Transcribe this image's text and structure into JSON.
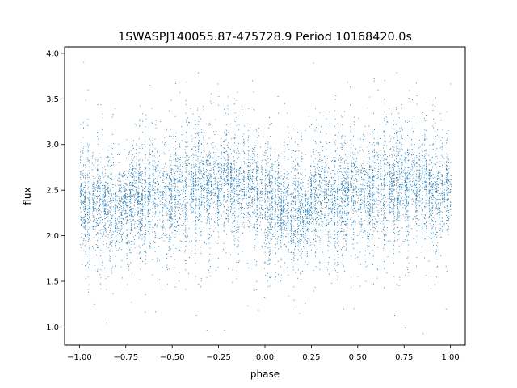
{
  "chart_data": {
    "type": "scatter",
    "title": "1SWASPJ140055.87-475728.9 Period 10168420.0s",
    "xlabel": "phase",
    "ylabel": "flux",
    "xlim": [
      -1.08,
      1.08
    ],
    "ylim": [
      0.8,
      4.07
    ],
    "xticks": [
      -1.0,
      -0.75,
      -0.5,
      -0.25,
      0.0,
      0.25,
      0.5,
      0.75,
      1.0
    ],
    "xtick_labels": [
      "−1.00",
      "−0.75",
      "−0.50",
      "−0.25",
      "0.00",
      "0.25",
      "0.50",
      "0.75",
      "1.00"
    ],
    "yticks": [
      1.0,
      1.5,
      2.0,
      2.5,
      3.0,
      3.5,
      4.0
    ],
    "ytick_labels": [
      "1.0",
      "1.5",
      "2.0",
      "2.5",
      "3.0",
      "3.5",
      "4.0"
    ],
    "grid": false,
    "marker_color": "#1f77b4",
    "series": [
      {
        "x": [
          -1.0,
          -0.9,
          -0.8,
          -0.7,
          -0.6,
          -0.5,
          -0.4,
          -0.3,
          -0.2,
          -0.1,
          0.0,
          0.1,
          0.2,
          0.3,
          0.4,
          0.5,
          0.6,
          0.7,
          0.8,
          0.9,
          1.0
        ],
        "y": [
          2.45,
          2.3,
          2.25,
          2.4,
          2.45,
          2.5,
          2.55,
          2.55,
          2.6,
          2.5,
          2.45,
          2.3,
          2.25,
          2.4,
          2.45,
          2.5,
          2.55,
          2.55,
          2.6,
          2.5,
          2.45
        ]
      }
    ]
  }
}
